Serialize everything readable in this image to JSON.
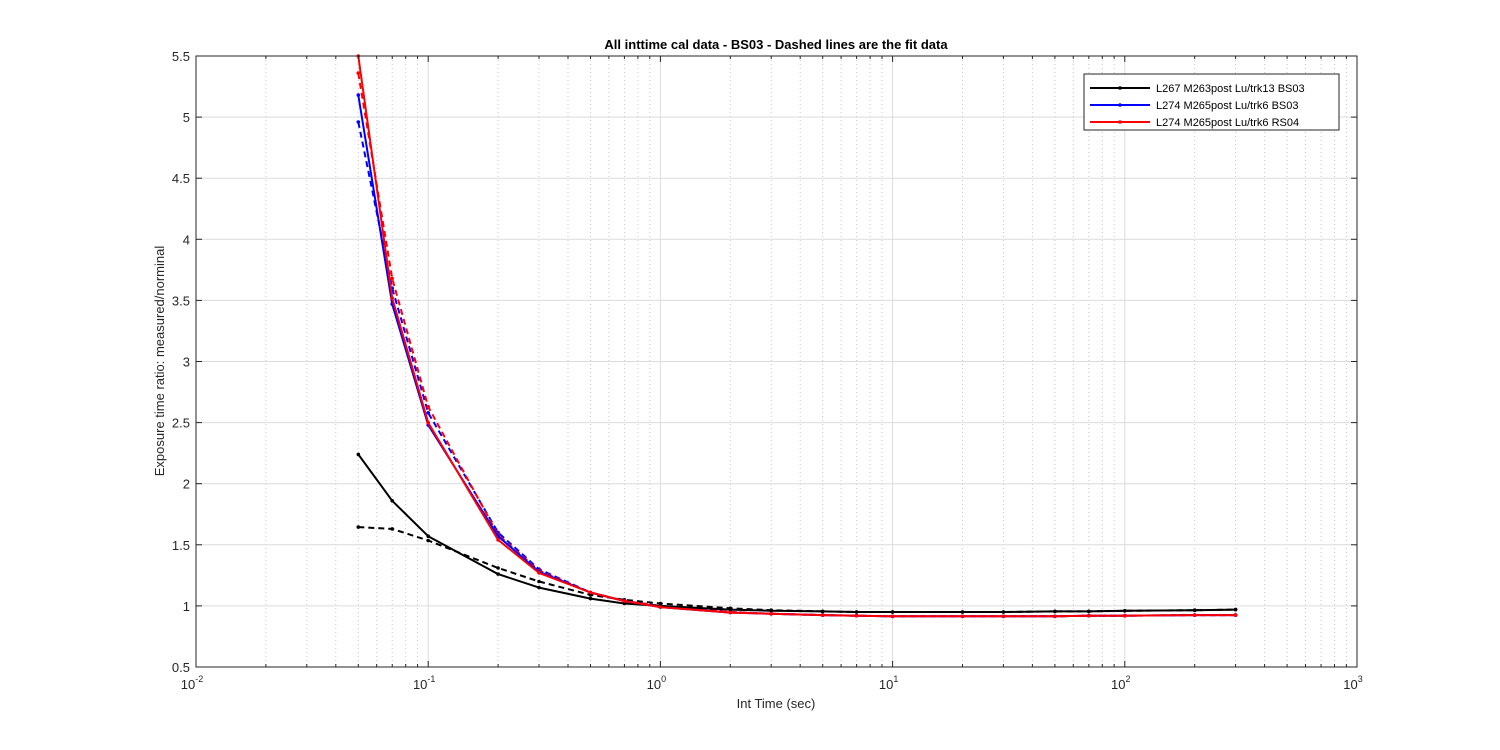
{
  "chart_data": {
    "type": "line",
    "title": "All inttime cal data - BS03 - Dashed lines are the fit data",
    "xlabel": "Int Time (sec)",
    "ylabel": "Exposure time ratio: measured/norminal",
    "xscale": "log",
    "xlim": [
      0.01,
      1000
    ],
    "ylim": [
      0.5,
      5.5
    ],
    "x_ticks": [
      {
        "base": "10",
        "exp": "-2"
      },
      {
        "base": "10",
        "exp": "-1"
      },
      {
        "base": "10",
        "exp": "0"
      },
      {
        "base": "10",
        "exp": "1"
      },
      {
        "base": "10",
        "exp": "2"
      },
      {
        "base": "10",
        "exp": "3"
      }
    ],
    "y_ticks": [
      "0.5",
      "1",
      "1.5",
      "2",
      "2.5",
      "3",
      "3.5",
      "4",
      "4.5",
      "5",
      "5.5"
    ],
    "grid": true,
    "legend_position": "top-right",
    "series": [
      {
        "name": "L267 M263post Lu/trk13 BS03",
        "color": "#000000",
        "style": "solid",
        "markers": true,
        "x": [
          0.05,
          0.07,
          0.1,
          0.2,
          0.3,
          0.5,
          0.7,
          1,
          2,
          3,
          5,
          7,
          10,
          20,
          30,
          50,
          70,
          100,
          200,
          300
        ],
        "y": [
          2.24,
          1.86,
          1.57,
          1.26,
          1.15,
          1.06,
          1.02,
          1.0,
          0.97,
          0.96,
          0.955,
          0.95,
          0.95,
          0.95,
          0.95,
          0.955,
          0.955,
          0.96,
          0.965,
          0.97
        ]
      },
      {
        "name": "L274 M265post Lu/trk6 BS03",
        "color": "#0000ff",
        "style": "solid",
        "markers": true,
        "x": [
          0.05,
          0.07,
          0.1,
          0.2,
          0.3,
          0.5,
          0.7,
          1,
          2,
          3,
          5,
          7,
          10,
          20,
          30,
          50,
          70,
          100,
          200,
          300
        ],
        "y": [
          5.18,
          3.47,
          2.48,
          1.57,
          1.28,
          1.11,
          1.04,
          0.99,
          0.945,
          0.935,
          0.925,
          0.92,
          0.915,
          0.915,
          0.915,
          0.915,
          0.92,
          0.92,
          0.925,
          0.925
        ]
      },
      {
        "name": "L274 M265post Lu/trk6 RS04",
        "color": "#ff0000",
        "style": "solid",
        "markers": true,
        "x": [
          0.05,
          0.07,
          0.1,
          0.2,
          0.3,
          0.5,
          0.7,
          1,
          2,
          3,
          5,
          7,
          10,
          20,
          30,
          50,
          70,
          100,
          200,
          300
        ],
        "y": [
          5.5,
          3.52,
          2.5,
          1.54,
          1.27,
          1.11,
          1.04,
          0.99,
          0.945,
          0.935,
          0.925,
          0.92,
          0.915,
          0.915,
          0.915,
          0.915,
          0.92,
          0.92,
          0.925,
          0.925
        ]
      },
      {
        "color": "#000000",
        "style": "dashed",
        "markers": true,
        "x": [
          0.05,
          0.07,
          0.1,
          0.2,
          0.3,
          0.5,
          0.7,
          1,
          2,
          3,
          5,
          7,
          10,
          20,
          30,
          50,
          70,
          100,
          200,
          300
        ],
        "y": [
          1.645,
          1.63,
          1.535,
          1.31,
          1.2,
          1.09,
          1.05,
          1.02,
          0.98,
          0.965,
          0.955,
          0.95,
          0.95,
          0.95,
          0.95,
          0.955,
          0.955,
          0.96,
          0.965,
          0.97
        ]
      },
      {
        "color": "#0000ff",
        "style": "dashed",
        "markers": true,
        "x": [
          0.05,
          0.07,
          0.1,
          0.2,
          0.3,
          0.5,
          0.7,
          1,
          2,
          3,
          5,
          7,
          10,
          20,
          30,
          50,
          70,
          100,
          200,
          300
        ],
        "y": [
          4.96,
          3.6,
          2.58,
          1.6,
          1.3,
          1.11,
          1.04,
          1.0,
          0.95,
          0.935,
          0.925,
          0.92,
          0.915,
          0.915,
          0.915,
          0.915,
          0.92,
          0.92,
          0.925,
          0.925
        ]
      },
      {
        "color": "#ff0000",
        "style": "dashed",
        "markers": true,
        "x": [
          0.05,
          0.07,
          0.1,
          0.2,
          0.3,
          0.5,
          0.7,
          1,
          2,
          3,
          5,
          7,
          10,
          20,
          30,
          50,
          70,
          100,
          200,
          300
        ],
        "y": [
          5.36,
          3.68,
          2.63,
          1.58,
          1.29,
          1.11,
          1.04,
          1.0,
          0.95,
          0.935,
          0.925,
          0.92,
          0.915,
          0.915,
          0.915,
          0.915,
          0.92,
          0.92,
          0.925,
          0.925
        ]
      }
    ]
  }
}
